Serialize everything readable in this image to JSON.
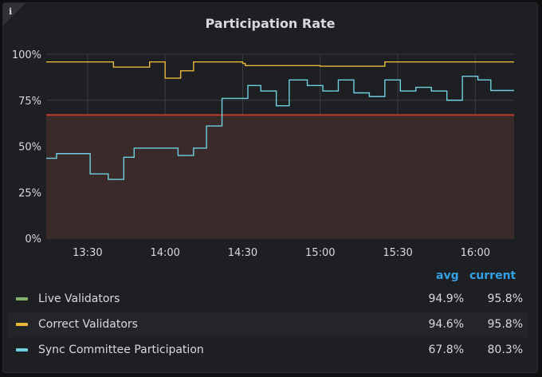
{
  "panel": {
    "title": "Participation Rate",
    "info_icon": "i"
  },
  "legend": {
    "headers": {
      "avg": "avg",
      "current": "current"
    },
    "items": [
      {
        "label": "Live Validators",
        "avg": "94.9%",
        "current": "95.8%",
        "color": "#7eb26d"
      },
      {
        "label": "Correct Validators",
        "avg": "94.6%",
        "current": "95.8%",
        "color": "#eab839"
      },
      {
        "label": "Sync Committee Participation",
        "avg": "67.8%",
        "current": "80.3%",
        "color": "#6ed0e0"
      }
    ]
  },
  "chart_data": {
    "type": "line",
    "title": "Participation Rate",
    "x_ticks": [
      "13:30",
      "14:00",
      "14:30",
      "15:00",
      "15:30",
      "16:00"
    ],
    "y_ticks": [
      "0%",
      "25%",
      "50%",
      "75%",
      "100%"
    ],
    "xlim": [
      "13:14",
      "16:15"
    ],
    "ylim": [
      0,
      100
    ],
    "grid": true,
    "threshold": {
      "value": 67,
      "color": "#c0392b",
      "fill": "#3a2a2a"
    },
    "series": [
      {
        "name": "Correct Validators",
        "color": "#eab839",
        "x": [
          "13:14",
          "13:39",
          "13:40",
          "13:53",
          "13:54",
          "13:59",
          "14:00",
          "14:05",
          "14:06",
          "14:10",
          "14:11",
          "14:25",
          "14:30",
          "14:31",
          "14:45",
          "15:00",
          "15:10",
          "15:25",
          "15:40",
          "16:00",
          "16:15"
        ],
        "y": [
          95.8,
          95.8,
          93,
          93,
          95.8,
          95.8,
          87,
          87,
          91,
          91,
          95.8,
          95.8,
          95,
          93.8,
          93.8,
          93.5,
          93.5,
          95.8,
          95.8,
          95.8,
          95.8
        ]
      },
      {
        "name": "Sync Committee Participation",
        "color": "#6ed0e0",
        "x": [
          "13:14",
          "13:18",
          "13:31",
          "13:38",
          "13:44",
          "13:48",
          "13:55",
          "14:05",
          "14:11",
          "14:16",
          "14:22",
          "14:25",
          "14:32",
          "14:37",
          "14:43",
          "14:48",
          "14:55",
          "15:01",
          "15:07",
          "15:13",
          "15:19",
          "15:25",
          "15:31",
          "15:37",
          "15:43",
          "15:49",
          "15:55",
          "16:01",
          "16:06",
          "16:11",
          "16:15"
        ],
        "y": [
          43.5,
          46,
          35,
          32,
          44,
          49,
          49,
          45,
          49,
          61,
          76,
          76,
          83,
          80,
          72,
          86,
          83,
          80,
          86,
          79,
          77,
          86,
          80,
          82,
          80,
          75,
          88,
          86,
          80.3,
          80.3,
          80.3
        ]
      }
    ]
  }
}
